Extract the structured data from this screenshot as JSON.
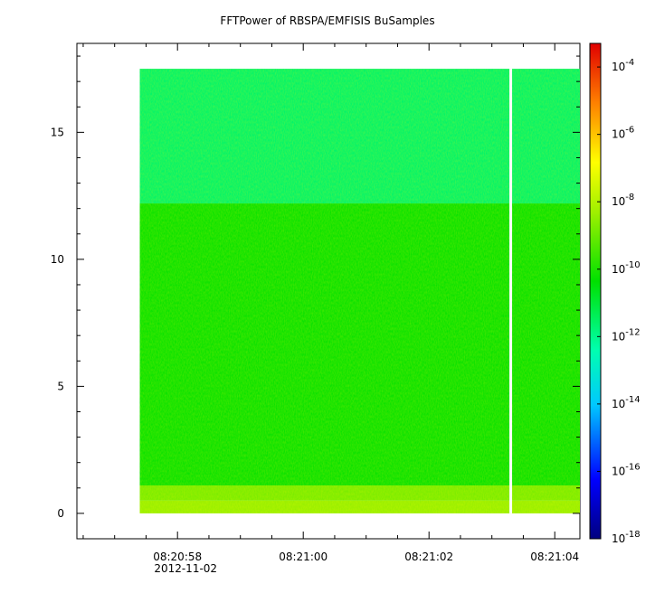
{
  "chart_data": {
    "type": "heatmap",
    "title": "FFTPower of RBSPA/EMFISIS  BuSamples",
    "xlabel": "",
    "ylabel": "",
    "ylim": [
      -1,
      18.5
    ],
    "yticks": [
      {
        "value": 0,
        "label": "0"
      },
      {
        "value": 5,
        "label": "5"
      },
      {
        "value": 10,
        "label": "10"
      },
      {
        "value": 15,
        "label": "15"
      }
    ],
    "xticks": [
      {
        "t": 0,
        "label": "08:20:58"
      },
      {
        "t": 2,
        "label": "08:21:00"
      },
      {
        "t": 4,
        "label": "08:21:02"
      },
      {
        "t": 6,
        "label": "08:21:04"
      }
    ],
    "x_minor_tick_step": 0.5,
    "x_date_label": "2012-11-02",
    "xlim": [
      -1.6,
      6.4
    ],
    "data_start_t": -0.6,
    "data_gap_t": 5.3,
    "freq_max": 17.5,
    "bands": [
      {
        "from": 0,
        "to": 0.5,
        "level": -8.4
      },
      {
        "from": 0.5,
        "to": 1.1,
        "level": -8.8
      },
      {
        "from": 1.1,
        "to": 12.2,
        "level": -10.3
      },
      {
        "from": 12.2,
        "to": 17.5,
        "level": -11.6
      }
    ],
    "colorbar": {
      "scale": "log",
      "range": [
        -18,
        -3.3
      ],
      "ticks": [
        {
          "exp": -4,
          "base": "10",
          "sup": "-4"
        },
        {
          "exp": -6,
          "base": "10",
          "sup": "-6"
        },
        {
          "exp": -8,
          "base": "10",
          "sup": "-8"
        },
        {
          "exp": -10,
          "base": "10",
          "sup": "-10"
        },
        {
          "exp": -12,
          "base": "10",
          "sup": "-12"
        },
        {
          "exp": -14,
          "base": "10",
          "sup": "-14"
        },
        {
          "exp": -16,
          "base": "10",
          "sup": "-16"
        },
        {
          "exp": -18,
          "base": "10",
          "sup": "-18"
        }
      ]
    }
  }
}
